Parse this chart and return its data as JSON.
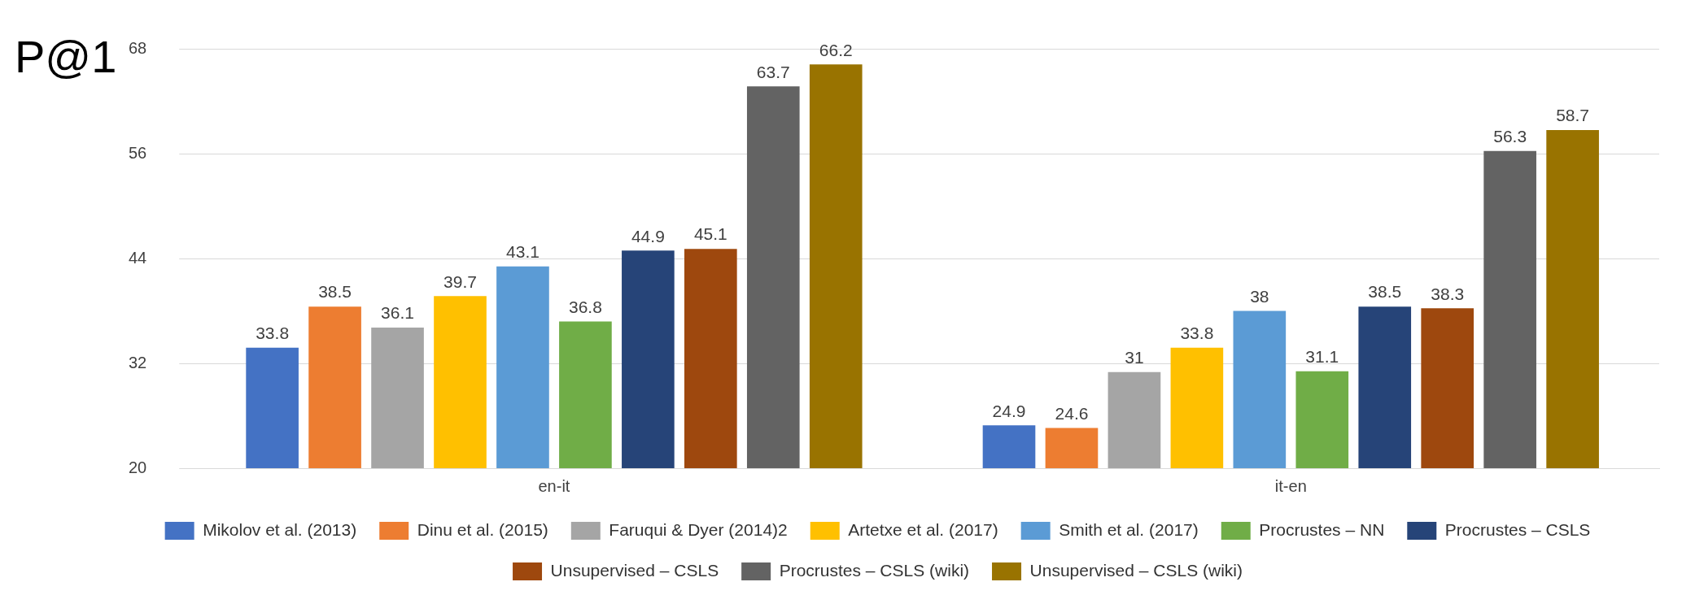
{
  "chart_data": {
    "type": "bar",
    "ylabel": "P@1",
    "categories": [
      "en-it",
      "it-en"
    ],
    "series": [
      {
        "name": "Mikolov et al. (2013)",
        "color": "#4472c4",
        "values": [
          33.8,
          24.9
        ]
      },
      {
        "name": "Dinu et al. (2015)",
        "color": "#ed7d31",
        "values": [
          38.5,
          24.6
        ]
      },
      {
        "name": "Faruqui & Dyer (2014)2",
        "color": "#a5a5a5",
        "values": [
          36.1,
          31
        ]
      },
      {
        "name": "Artetxe et al. (2017)",
        "color": "#ffc000",
        "values": [
          39.7,
          33.8
        ]
      },
      {
        "name": "Smith et al. (2017)",
        "color": "#5b9bd5",
        "values": [
          43.1,
          38
        ]
      },
      {
        "name": "Procrustes – NN",
        "color": "#70ad47",
        "values": [
          36.8,
          31.1
        ]
      },
      {
        "name": "Procrustes – CSLS",
        "color": "#264478",
        "values": [
          44.9,
          38.5
        ]
      },
      {
        "name": "Unsupervised – CSLS",
        "color": "#9e480e",
        "values": [
          45.1,
          38.3
        ]
      },
      {
        "name": "Procrustes – CSLS (wiki)",
        "color": "#636363",
        "values": [
          63.7,
          56.3
        ]
      },
      {
        "name": "Unsupervised – CSLS (wiki)",
        "color": "#997300",
        "values": [
          66.2,
          58.7
        ]
      }
    ],
    "ylim": [
      20,
      68
    ],
    "yticks": [
      20,
      32,
      44,
      56,
      68
    ],
    "grid": "y",
    "legend": "bottom",
    "data_labels": true
  }
}
